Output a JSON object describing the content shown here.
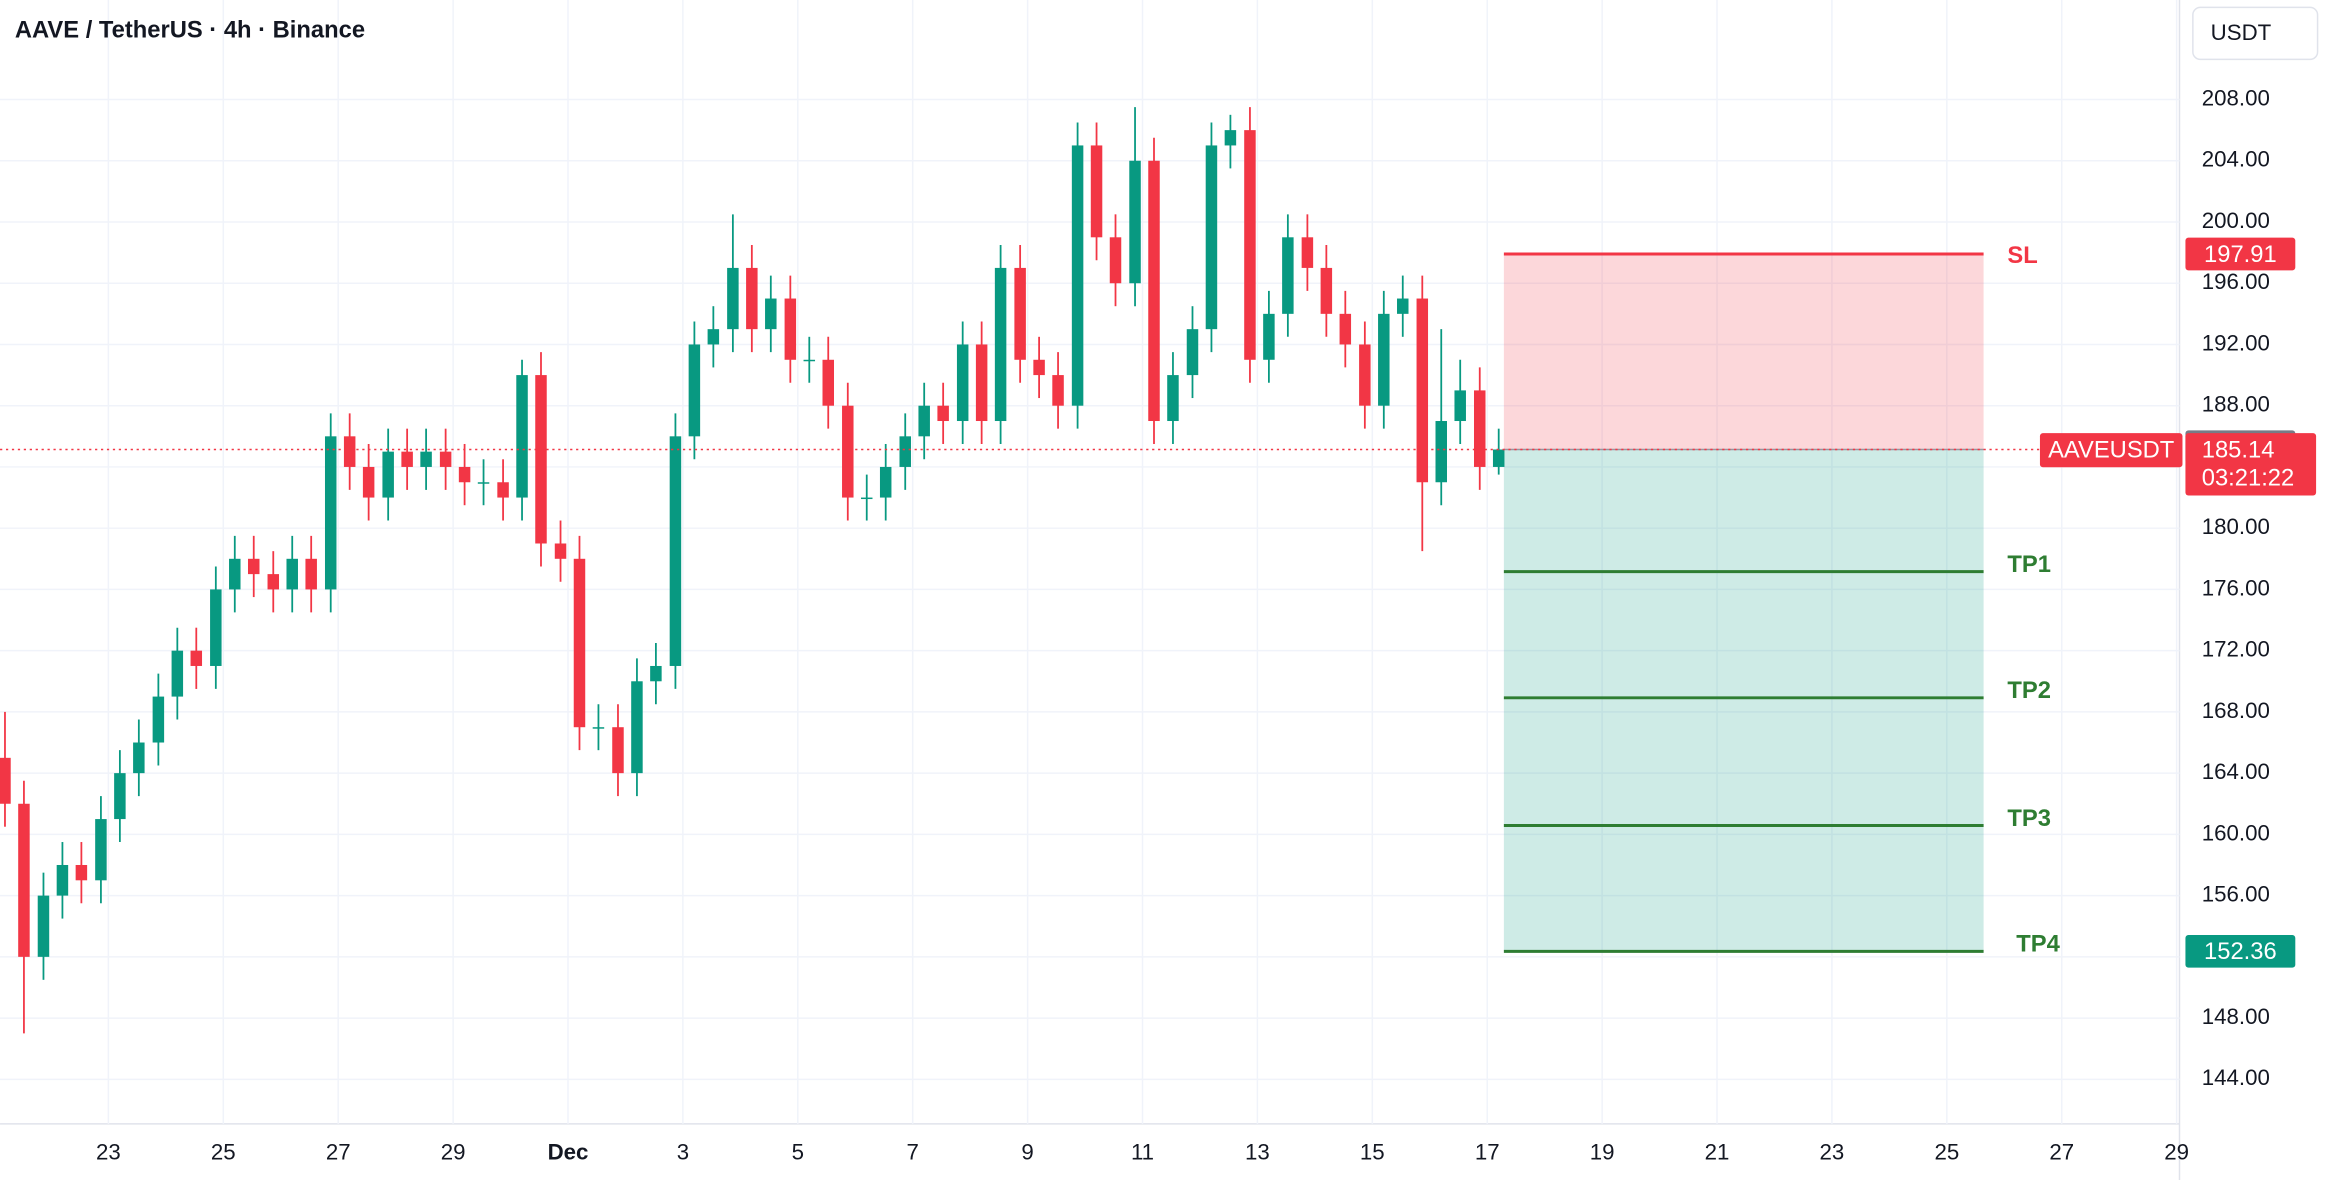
{
  "chart_data": {
    "type": "candlestick",
    "title": "AAVE / TetherUS · 4h · Binance",
    "currency": "USDT",
    "symbol": "AAVEUSDT",
    "up_color": "#089981",
    "down_color": "#f23645",
    "x": [
      -1.8,
      -1.47,
      -1.13,
      -0.8,
      -0.47,
      -0.13,
      0.2,
      0.53,
      0.87,
      1.2,
      1.53,
      1.87,
      2.2,
      2.53,
      2.87,
      3.2,
      3.53,
      3.87,
      4.2,
      4.53,
      4.87,
      5.2,
      5.53,
      5.87,
      6.2,
      6.53,
      6.87,
      7.2,
      7.53,
      7.87,
      8.2,
      8.53,
      8.87,
      9.2,
      9.53,
      9.87,
      10.2,
      10.53,
      10.87,
      11.2,
      11.53,
      11.87,
      12.2,
      12.53,
      12.87,
      13.2,
      13.53,
      13.87,
      14.2,
      14.53,
      14.87,
      15.2,
      15.53,
      15.87,
      16.2,
      16.53,
      16.87,
      17.2,
      17.53,
      17.87,
      18.2,
      18.53,
      18.87,
      19.2,
      19.53,
      19.87,
      20.2,
      20.53,
      20.87,
      21.2,
      21.53,
      21.87,
      22.2,
      22.53,
      22.87,
      23.2,
      23.53,
      23.87,
      24.2
    ],
    "open": [
      165,
      162,
      152,
      156,
      158,
      157,
      161,
      164,
      166,
      169,
      172,
      171,
      176,
      178,
      177,
      176,
      178,
      176,
      186,
      184,
      182,
      185,
      184,
      185,
      184,
      183,
      183,
      182,
      190,
      179,
      178,
      167,
      167,
      164,
      170,
      171,
      186,
      192,
      193,
      197,
      193,
      195,
      191,
      191,
      188,
      182,
      182,
      184,
      186,
      188,
      187,
      192,
      187,
      197,
      191,
      190,
      188,
      205,
      199,
      196,
      204,
      187,
      190,
      193,
      205,
      206,
      191,
      194,
      199,
      197,
      194,
      192,
      188,
      194,
      195,
      183,
      187,
      189,
      184
    ],
    "high": [
      168,
      163.5,
      157.5,
      159.5,
      159.5,
      162.5,
      165.5,
      167.5,
      170.5,
      173.5,
      173.5,
      177.5,
      179.5,
      179.5,
      178.5,
      179.5,
      179.5,
      187.5,
      187.5,
      185.5,
      186.5,
      186.5,
      186.5,
      186.5,
      185.5,
      184.5,
      184.5,
      191,
      191.5,
      180.5,
      179.5,
      168.5,
      168.5,
      171.5,
      172.5,
      187.5,
      193.5,
      194.5,
      200.5,
      198.5,
      196.5,
      196.5,
      192.5,
      192.5,
      189.5,
      183.5,
      185.5,
      187.5,
      189.5,
      189.5,
      193.5,
      193.5,
      198.5,
      198.5,
      192.5,
      191.5,
      206.5,
      206.5,
      200.5,
      207.5,
      205.5,
      191.5,
      194.5,
      206.5,
      207,
      207.5,
      195.5,
      200.5,
      200.5,
      198.5,
      195.5,
      193.5,
      195.5,
      196.5,
      196.5,
      193,
      191,
      190.5,
      186.5
    ],
    "low": [
      160.5,
      147,
      150.5,
      154.5,
      155.5,
      155.5,
      159.5,
      162.5,
      164.5,
      167.5,
      169.5,
      169.5,
      174.5,
      175.5,
      174.5,
      174.5,
      174.5,
      174.5,
      182.5,
      180.5,
      180.5,
      182.5,
      182.5,
      182.5,
      181.5,
      181.5,
      180.5,
      180.5,
      177.5,
      176.5,
      165.5,
      165.5,
      162.5,
      162.5,
      168.5,
      169.5,
      184.5,
      190.5,
      191.5,
      191.5,
      191.5,
      189.5,
      189.5,
      186.5,
      180.5,
      180.5,
      180.5,
      182.5,
      184.5,
      185.5,
      185.5,
      185.5,
      185.5,
      189.5,
      188.5,
      186.5,
      186.5,
      197.5,
      194.5,
      194.5,
      185.5,
      185.5,
      188.5,
      191.5,
      203.5,
      189.5,
      189.5,
      192.5,
      195.5,
      192.5,
      190.5,
      186.5,
      186.5,
      192.5,
      178.5,
      181.5,
      185.5,
      182.5,
      183.5
    ],
    "close": [
      162,
      152,
      156,
      158,
      157,
      161,
      164,
      166,
      169,
      172,
      171,
      176,
      178,
      177,
      176,
      178,
      176,
      186,
      184,
      182,
      185,
      184,
      185,
      184,
      183,
      183,
      182,
      190,
      179,
      178,
      167,
      167,
      164,
      170,
      171,
      186,
      192,
      193,
      197,
      193,
      195,
      191,
      191,
      188,
      182,
      182,
      184,
      186,
      188,
      187,
      192,
      187,
      197,
      191,
      190,
      188,
      205,
      199,
      196,
      204,
      187,
      190,
      193,
      205,
      206,
      191,
      194,
      199,
      197,
      194,
      192,
      188,
      194,
      195,
      183,
      187,
      189,
      184,
      185.14
    ],
    "xlim": [
      -1.886,
      36.05
    ],
    "xticks": [
      {
        "value": 0,
        "label": "23"
      },
      {
        "value": 2,
        "label": "25"
      },
      {
        "value": 4,
        "label": "27"
      },
      {
        "value": 6,
        "label": "29"
      },
      {
        "value": 8,
        "label": "Dec"
      },
      {
        "value": 10,
        "label": "3"
      },
      {
        "value": 12,
        "label": "5"
      },
      {
        "value": 14,
        "label": "7"
      },
      {
        "value": 16,
        "label": "9"
      },
      {
        "value": 18,
        "label": "11"
      },
      {
        "value": 20,
        "label": "13"
      },
      {
        "value": 22,
        "label": "15"
      },
      {
        "value": 24,
        "label": "17"
      },
      {
        "value": 26,
        "label": "19"
      },
      {
        "value": 28,
        "label": "21"
      },
      {
        "value": 30,
        "label": "23"
      },
      {
        "value": 32,
        "label": "25"
      },
      {
        "value": 34,
        "label": "27"
      },
      {
        "value": 36,
        "label": "29"
      }
    ],
    "ylim": [
      141.09,
      214.5
    ],
    "yticks": [
      {
        "value": 144,
        "label": "144.00"
      },
      {
        "value": 148,
        "label": "148.00"
      },
      {
        "value": 152,
        "label": "152.00"
      },
      {
        "value": 156,
        "label": "156.00"
      },
      {
        "value": 160,
        "label": "160.00"
      },
      {
        "value": 164,
        "label": "164.00"
      },
      {
        "value": 168,
        "label": "168.00"
      },
      {
        "value": 172,
        "label": "172.00"
      },
      {
        "value": 176,
        "label": "176.00"
      },
      {
        "value": 180,
        "label": "180.00"
      },
      {
        "value": 184,
        "label": "184.00"
      },
      {
        "value": 188,
        "label": "188.00"
      },
      {
        "value": 192,
        "label": "192.00"
      },
      {
        "value": 196,
        "label": "196.00"
      },
      {
        "value": 200,
        "label": "200.00"
      },
      {
        "value": 204,
        "label": "204.00"
      },
      {
        "value": 208,
        "label": "208.00"
      }
    ],
    "grid": true,
    "last_price": 185.14,
    "countdown": "03:21:22",
    "marker_price": 185.32,
    "position": {
      "x_start": 24.29,
      "x_end": 32.64,
      "entry": 185.14,
      "stop": 197.91,
      "stop_name": "SL",
      "targets": [
        {
          "name": "TP1",
          "value": 177.16
        },
        {
          "name": "TP2",
          "value": 168.92
        },
        {
          "name": "TP3",
          "value": 160.58
        },
        {
          "name": "TP4",
          "value": 152.36
        }
      ]
    }
  }
}
